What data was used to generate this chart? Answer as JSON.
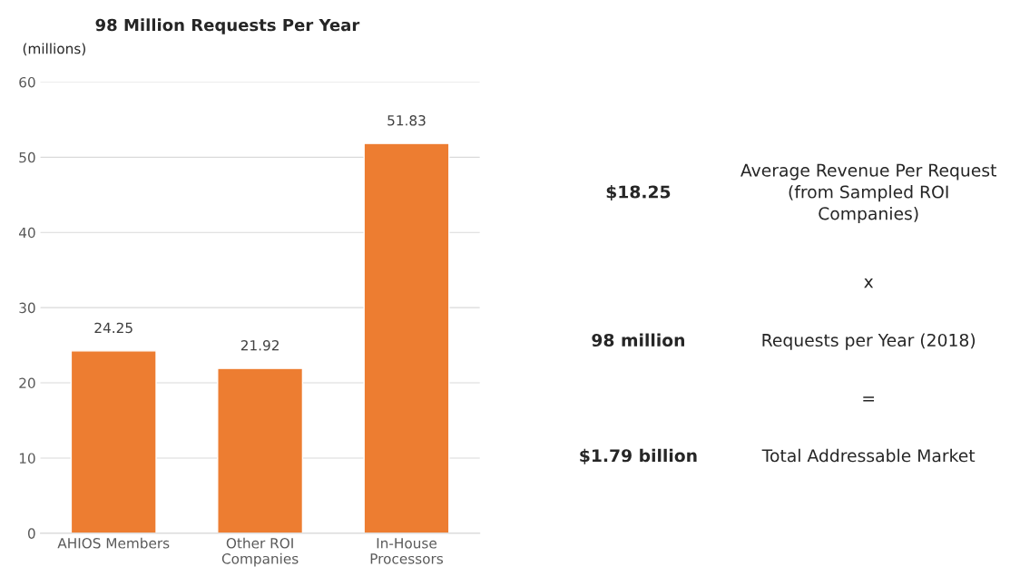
{
  "chart_data": {
    "type": "bar",
    "title": "98 Million Requests Per Year",
    "ylabel": "(millions)",
    "categories": [
      "AHIOS Members",
      "Other ROI\nCompanies",
      "In-House\nProcessors"
    ],
    "values": [
      24.25,
      21.92,
      51.83
    ],
    "color": "#ed7d31",
    "ylim": [
      0,
      60
    ],
    "yticks": [
      0,
      10,
      20,
      30,
      40,
      50,
      60
    ],
    "grid": "y",
    "data_labels": true,
    "annotations": [
      "$18.25",
      "Average Revenue Per Request\n(from Sampled ROI\nCompanies)",
      "x",
      "98 million",
      "Requests per Year (2018)",
      "=",
      "$1.79 billion",
      "Total Addressable Market"
    ]
  }
}
